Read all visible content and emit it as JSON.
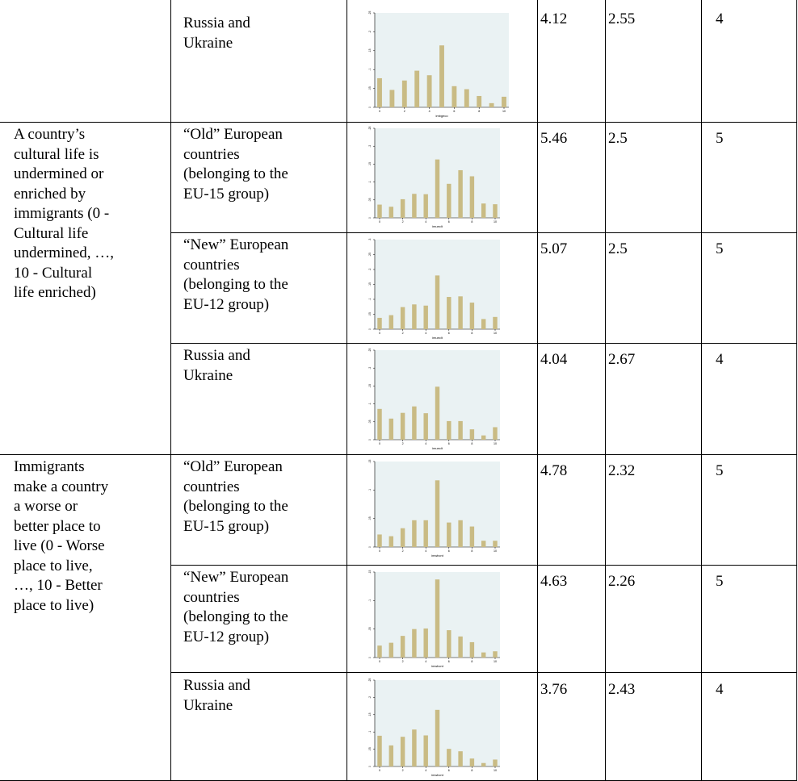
{
  "rows": [
    {
      "question": "",
      "group": "Russia and\nUkraine",
      "mean": "4.12",
      "sd": "2.55",
      "median": "4",
      "chart": {
        "xlabel": "imbgeco",
        "yticks": [
          "0",
          ".05",
          ".1",
          ".15",
          ".2",
          ".25"
        ],
        "values": [
          0.077,
          0.046,
          0.071,
          0.097,
          0.085,
          0.164,
          0.056,
          0.048,
          0.03,
          0.011,
          0.028
        ]
      }
    },
    {
      "question": "A country’s\ncultural life is\nundermined or\nenriched by\nimmigrants (0 -\nCultural life\nundermined, …,\n10 - Cultural\nlife enriched)",
      "group": "“Old” European\ncountries\n(belonging to the\nEU-15 group)",
      "mean": "5.46",
      "sd": "2.5",
      "median": "5",
      "chart": {
        "xlabel": "imueclt",
        "yticks": [
          "0",
          ".05",
          ".1",
          ".15",
          ".2",
          ".25"
        ],
        "values": [
          0.037,
          0.031,
          0.052,
          0.067,
          0.066,
          0.163,
          0.095,
          0.133,
          0.116,
          0.04,
          0.038
        ]
      }
    },
    {
      "question": "",
      "group": "“New” European\ncountries\n(belonging to the\nEU-12 group)",
      "mean": "5.07",
      "sd": "2.5",
      "median": "5",
      "chart": {
        "xlabel": "imueclt",
        "yticks": [
          "0",
          ".05",
          ".1",
          ".15",
          ".2",
          ".25",
          ".3"
        ],
        "values": [
          0.038,
          0.047,
          0.074,
          0.083,
          0.079,
          0.18,
          0.108,
          0.11,
          0.089,
          0.034,
          0.041
        ]
      }
    },
    {
      "question": "",
      "group": "Russia and\nUkraine",
      "mean": "4.04",
      "sd": "2.67",
      "median": "4",
      "chart": {
        "xlabel": "imueclt",
        "yticks": [
          "0",
          ".05",
          ".1",
          ".15",
          ".2",
          ".25"
        ],
        "values": [
          0.086,
          0.059,
          0.075,
          0.093,
          0.074,
          0.148,
          0.052,
          0.052,
          0.029,
          0.012,
          0.035
        ]
      }
    },
    {
      "question": "Immigrants\nmake a country\na worse or\nbetter place to\nlive (0 - Worse\nplace to live,\n…, 10 - Better\nplace to live)",
      "group": "“Old” European\ncountries\n(belonging to the\nEU-15 group)",
      "mean": "4.78",
      "sd": "2.32",
      "median": "5",
      "chart": {
        "xlabel": "imwbcnt",
        "yticks": [
          "0",
          ".05",
          ".1",
          ".15"
        ],
        "values": [
          0.022,
          0.019,
          0.033,
          0.047,
          0.047,
          0.117,
          0.043,
          0.047,
          0.036,
          0.011,
          0.011
        ]
      }
    },
    {
      "question": "",
      "group": "“New” European\ncountries\n(belonging to the\nEU-12 group)",
      "mean": "4.63",
      "sd": "2.26",
      "median": "5",
      "chart": {
        "xlabel": "imwbcnt",
        "yticks": [
          "0",
          ".05",
          ".1",
          ".15"
        ],
        "values": [
          0.021,
          0.026,
          0.038,
          0.05,
          0.051,
          0.137,
          0.048,
          0.037,
          0.027,
          0.009,
          0.011
        ]
      }
    },
    {
      "question": "",
      "group": "Russia and\nUkraine",
      "mean": "3.76",
      "sd": "2.43",
      "median": "4",
      "chart": {
        "xlabel": "imwbcnt",
        "yticks": [
          "0",
          ".05",
          ".1",
          ".15",
          ".2",
          ".25"
        ],
        "values": [
          0.089,
          0.061,
          0.086,
          0.107,
          0.09,
          0.164,
          0.051,
          0.044,
          0.023,
          0.01,
          0.02
        ]
      }
    }
  ],
  "chart_data": [
    {
      "type": "bar",
      "categories": [
        "0",
        "1",
        "2",
        "3",
        "4",
        "5",
        "6",
        "7",
        "8",
        "9",
        "10"
      ],
      "xticks": [
        "0",
        "2",
        "4",
        "6",
        "8",
        "10"
      ],
      "xlabel": "imbgeco",
      "values": [
        0.077,
        0.046,
        0.071,
        0.097,
        0.085,
        0.164,
        0.056,
        0.048,
        0.03,
        0.011,
        0.028
      ]
    },
    {
      "type": "bar",
      "categories": [
        "0",
        "1",
        "2",
        "3",
        "4",
        "5",
        "6",
        "7",
        "8",
        "9",
        "10"
      ],
      "xticks": [
        "0",
        "2",
        "4",
        "6",
        "8",
        "10"
      ],
      "xlabel": "imueclt",
      "values": [
        0.037,
        0.031,
        0.052,
        0.067,
        0.066,
        0.163,
        0.095,
        0.133,
        0.116,
        0.04,
        0.038
      ]
    },
    {
      "type": "bar",
      "categories": [
        "0",
        "1",
        "2",
        "3",
        "4",
        "5",
        "6",
        "7",
        "8",
        "9",
        "10"
      ],
      "xticks": [
        "0",
        "2",
        "4",
        "6",
        "8",
        "10"
      ],
      "xlabel": "imueclt",
      "values": [
        0.038,
        0.047,
        0.074,
        0.083,
        0.079,
        0.18,
        0.108,
        0.11,
        0.089,
        0.034,
        0.041
      ]
    },
    {
      "type": "bar",
      "categories": [
        "0",
        "1",
        "2",
        "3",
        "4",
        "5",
        "6",
        "7",
        "8",
        "9",
        "10"
      ],
      "xticks": [
        "0",
        "2",
        "4",
        "6",
        "8",
        "10"
      ],
      "xlabel": "imueclt",
      "values": [
        0.086,
        0.059,
        0.075,
        0.093,
        0.074,
        0.148,
        0.052,
        0.052,
        0.029,
        0.012,
        0.035
      ]
    },
    {
      "type": "bar",
      "categories": [
        "0",
        "1",
        "2",
        "3",
        "4",
        "5",
        "6",
        "7",
        "8",
        "9",
        "10"
      ],
      "xticks": [
        "0",
        "2",
        "4",
        "6",
        "8",
        "10"
      ],
      "xlabel": "imwbcnt",
      "values": [
        0.022,
        0.019,
        0.033,
        0.047,
        0.047,
        0.117,
        0.043,
        0.047,
        0.036,
        0.011,
        0.011
      ]
    },
    {
      "type": "bar",
      "categories": [
        "0",
        "1",
        "2",
        "3",
        "4",
        "5",
        "6",
        "7",
        "8",
        "9",
        "10"
      ],
      "xticks": [
        "0",
        "2",
        "4",
        "6",
        "8",
        "10"
      ],
      "xlabel": "imwbcnt",
      "values": [
        0.021,
        0.026,
        0.038,
        0.05,
        0.051,
        0.137,
        0.048,
        0.037,
        0.027,
        0.009,
        0.011
      ]
    },
    {
      "type": "bar",
      "categories": [
        "0",
        "1",
        "2",
        "3",
        "4",
        "5",
        "6",
        "7",
        "8",
        "9",
        "10"
      ],
      "xticks": [
        "0",
        "2",
        "4",
        "6",
        "8",
        "10"
      ],
      "xlabel": "imwbcnt",
      "values": [
        0.089,
        0.061,
        0.086,
        0.107,
        0.09,
        0.164,
        0.051,
        0.044,
        0.023,
        0.01,
        0.02
      ]
    }
  ],
  "colors": {
    "bar": "#c9bb84",
    "plot_bg": "#eaf2f3",
    "panel_bg": "#ffffff",
    "axis": "#000000"
  }
}
